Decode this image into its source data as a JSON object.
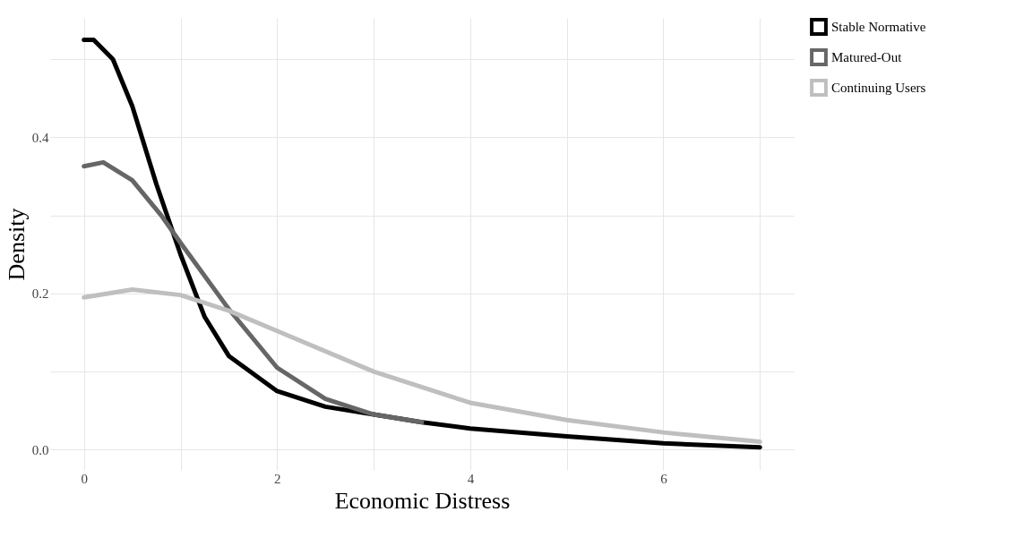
{
  "chart_data": {
    "type": "line",
    "xlabel": "Economic Distress",
    "ylabel": "Density",
    "xlim": [
      -0.35,
      7.35
    ],
    "ylim": [
      -0.026,
      0.553
    ],
    "xticks": [
      0,
      {
        "value": 1,
        "label": null
      },
      2,
      {
        "value": 3,
        "label": null
      },
      4,
      {
        "value": 5,
        "label": null
      },
      6,
      {
        "value": 7,
        "label": null
      }
    ],
    "yticks": [
      {
        "value": 0,
        "label": "0.0"
      },
      {
        "value": 0.1,
        "label": null
      },
      {
        "value": 0.2,
        "label": "0.2"
      },
      {
        "value": 0.3,
        "label": null
      },
      {
        "value": 0.4,
        "label": "0.4"
      },
      {
        "value": 0.5,
        "label": null
      }
    ],
    "grid": true,
    "legend": "right",
    "marker": "none",
    "line_style": "solid",
    "series": [
      {
        "name": "Stable Normative",
        "color": "#000000",
        "x": [
          0,
          0.1,
          0.3,
          0.5,
          0.75,
          1.0,
          1.25,
          1.5,
          2.0,
          2.5,
          3.0,
          3.5,
          4,
          5,
          6,
          7
        ],
        "values": [
          0.525,
          0.525,
          0.5,
          0.44,
          0.34,
          0.25,
          0.17,
          0.12,
          0.075,
          0.055,
          0.045,
          0.035,
          0.027,
          0.017,
          0.008,
          0.003
        ]
      },
      {
        "name": "Matured-Out",
        "color": "#666666",
        "x": [
          0,
          0.2,
          0.5,
          0.8,
          1.0,
          1.5,
          2.0,
          2.5,
          3.0,
          3.5
        ],
        "values": [
          0.363,
          0.368,
          0.345,
          0.3,
          0.265,
          0.18,
          0.105,
          0.065,
          0.045,
          0.035
        ]
      },
      {
        "name": "Continuing Users",
        "color": "#bfbfbf",
        "x": [
          0,
          0.5,
          1.0,
          1.5,
          2,
          3,
          4,
          5,
          6,
          7
        ],
        "values": [
          0.195,
          0.205,
          0.198,
          0.178,
          0.152,
          0.1,
          0.06,
          0.038,
          0.022,
          0.01
        ]
      }
    ]
  }
}
